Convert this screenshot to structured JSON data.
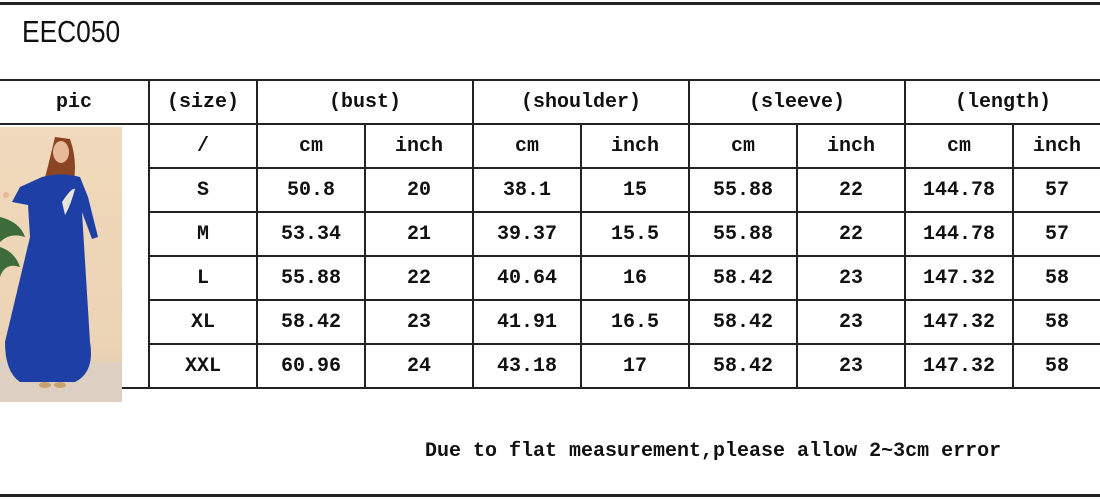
{
  "title": "EEC050",
  "headers": [
    "pic",
    "(size)",
    "(bust)",
    "(shoulder)",
    "(sleeve)",
    "(length)"
  ],
  "units": [
    "/",
    "cm",
    "inch",
    "cm",
    "inch",
    "cm",
    "inch",
    "cm",
    "inch"
  ],
  "rows": [
    {
      "size": "S",
      "values": [
        "50.8",
        "20",
        "38.1",
        "15",
        "55.88",
        "22",
        "144.78",
        "57"
      ]
    },
    {
      "size": "M",
      "values": [
        "53.34",
        "21",
        "39.37",
        "15.5",
        "55.88",
        "22",
        "144.78",
        "57"
      ]
    },
    {
      "size": "L",
      "values": [
        "55.88",
        "22",
        "40.64",
        "16",
        "58.42",
        "23",
        "147.32",
        "58"
      ]
    },
    {
      "size": "XL",
      "values": [
        "58.42",
        "23",
        "41.91",
        "16.5",
        "58.42",
        "23",
        "147.32",
        "58"
      ]
    },
    {
      "size": "XXL",
      "values": [
        "60.96",
        "24",
        "43.18",
        "17",
        "58.42",
        "23",
        "147.32",
        "58"
      ]
    }
  ],
  "note": "Due to flat measurement,please allow 2~3cm error",
  "colors": {
    "dress": "#1d3fa6",
    "background": "#efd7bb",
    "lines": "#222222"
  }
}
